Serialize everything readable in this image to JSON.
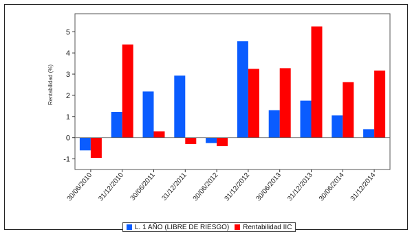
{
  "chart_data": {
    "type": "bar",
    "ylabel": "Rentabilidad (%)",
    "ylim": [
      -1.5,
      5.85
    ],
    "yticks": [
      -1,
      0,
      1,
      2,
      3,
      4,
      5
    ],
    "grid": false,
    "legend_position": "bottom",
    "categories": [
      "30/06/2010",
      "31/12/2010",
      "30/06/2011",
      "31/12/2011",
      "30/06/2012",
      "31/12/2012",
      "30/06/2013",
      "31/12/2013",
      "30/06/2014",
      "31/12/2014"
    ],
    "series": [
      {
        "name": "L. 1 AÑO (LIBRE DE RIESGO)",
        "color": "#0a5cff",
        "values": [
          -0.6,
          1.22,
          2.18,
          2.93,
          -0.25,
          4.55,
          1.3,
          1.75,
          1.05,
          0.4
        ]
      },
      {
        "name": "Rentabilidad IIC",
        "color": "#ff0000",
        "values": [
          -0.95,
          4.4,
          0.3,
          -0.3,
          -0.4,
          3.25,
          3.28,
          5.25,
          2.62,
          3.17
        ]
      }
    ]
  }
}
